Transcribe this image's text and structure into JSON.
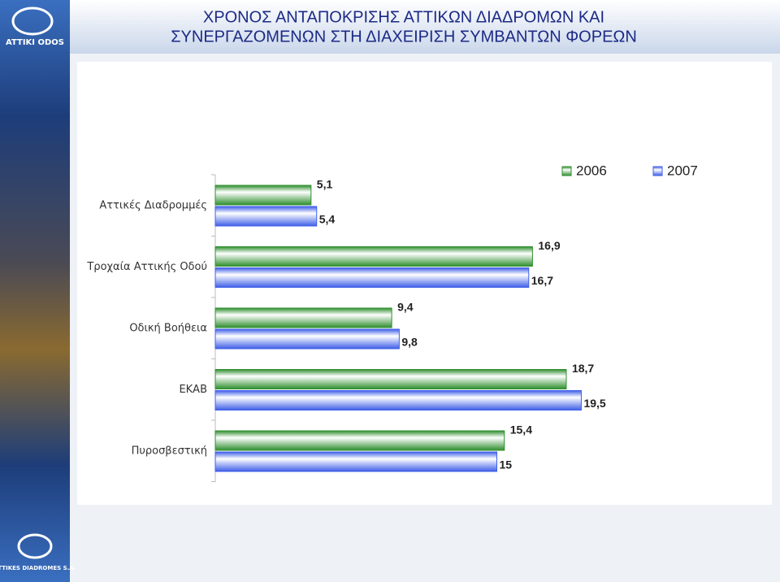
{
  "logo": {
    "top": "ATTIKI ODOS",
    "bottom": "ATTIKES DIADROMES S.A."
  },
  "chart_data": {
    "type": "hbar",
    "title": [
      "ΧΡΟΝΟΣ ΑΝΤΑΠΟΚΡΙΣΗΣ ΑΤΤΙΚΩΝ ΔΙΑΔΡΟΜΩΝ ΚΑΙ",
      "ΣΥΝΕΡΓΑΖΟΜΕΝΩΝ ΣΤΗ ΔΙΑΧΕΙΡΙΣΗ ΣΥΜΒΑΝΤΩΝ ΦΟΡΕΩΝ"
    ],
    "categories": [
      "Αττικές Διαδρομμές",
      "Τροχαία Αττικής Οδού",
      "Οδική Βοήθεια",
      "ΕΚΑΒ",
      "Πυροσβεστική"
    ],
    "series": [
      {
        "name": "2006",
        "color": "#2f8f2f",
        "values": [
          5.1,
          16.9,
          9.4,
          18.7,
          15.4
        ],
        "value_labels": [
          "5,1",
          "16,9",
          "9,4",
          "18,7",
          "15,4"
        ]
      },
      {
        "name": "2007",
        "color": "#3f5fe8",
        "values": [
          5.4,
          16.7,
          9.8,
          19.5,
          15
        ],
        "value_labels": [
          "5,4",
          "16,7",
          "9,8",
          "19,5",
          "15"
        ]
      }
    ],
    "xlim": [
      0,
      20
    ],
    "legend": "top-right"
  }
}
